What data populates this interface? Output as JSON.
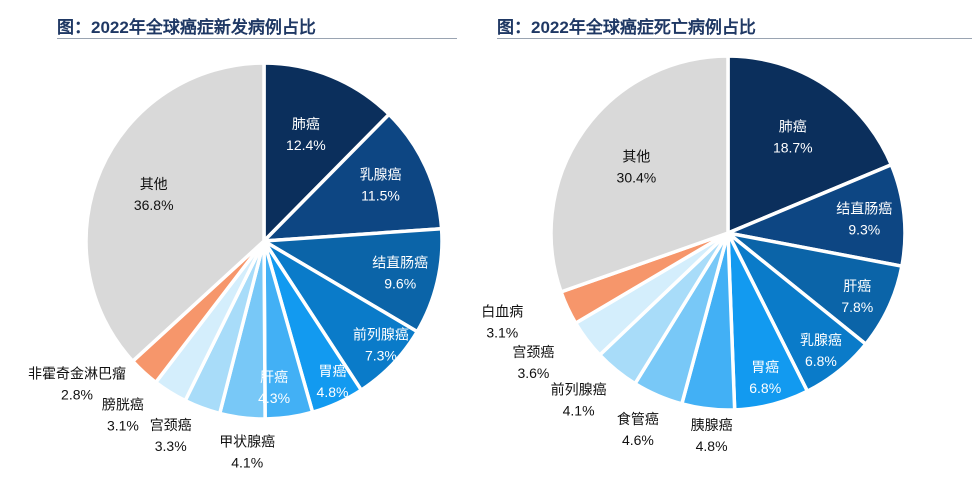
{
  "chart_data": [
    {
      "type": "pie",
      "title": "图：2022年全球癌症新发病例占比",
      "labels": [
        "肺癌",
        "乳腺癌",
        "结直肠癌",
        "前列腺癌",
        "胃癌",
        "肝癌",
        "甲状腺癌",
        "宫颈癌",
        "膀胱癌",
        "非霍奇金淋巴瘤",
        "其他"
      ],
      "values": [
        12.4,
        11.5,
        9.6,
        7.3,
        4.8,
        4.3,
        4.1,
        3.3,
        3.1,
        2.8,
        36.8
      ],
      "value_labels": [
        "12.4%",
        "11.5%",
        "9.6%",
        "7.3%",
        "4.8%",
        "4.3%",
        "4.1%",
        "3.3%",
        "3.1%",
        "2.8%",
        "36.8%"
      ],
      "colors": [
        "#0b2f5c",
        "#0d4683",
        "#0b64a8",
        "#0a7bc9",
        "#129af0",
        "#42b0f5",
        "#78c8f7",
        "#a8dcf9",
        "#d4eefc",
        "#f6966b",
        "#d9d9d9"
      ]
    },
    {
      "type": "pie",
      "title": "图：2022年全球癌症死亡病例占比",
      "labels": [
        "肺癌",
        "结直肠癌",
        "肝癌",
        "乳腺癌",
        "胃癌",
        "胰腺癌",
        "食管癌",
        "前列腺癌",
        "宫颈癌",
        "白血病",
        "其他"
      ],
      "values": [
        18.7,
        9.3,
        7.8,
        6.8,
        6.8,
        4.8,
        4.6,
        4.1,
        3.6,
        3.1,
        30.4
      ],
      "value_labels": [
        "18.7%",
        "9.3%",
        "7.8%",
        "6.8%",
        "6.8%",
        "4.8%",
        "4.6%",
        "4.1%",
        "3.6%",
        "3.1%",
        "30.4%"
      ],
      "colors": [
        "#0b2f5c",
        "#0d4683",
        "#0b64a8",
        "#0a7bc9",
        "#129af0",
        "#42b0f5",
        "#78c8f7",
        "#a8dcf9",
        "#d4eefc",
        "#f6966b",
        "#d9d9d9"
      ]
    }
  ]
}
